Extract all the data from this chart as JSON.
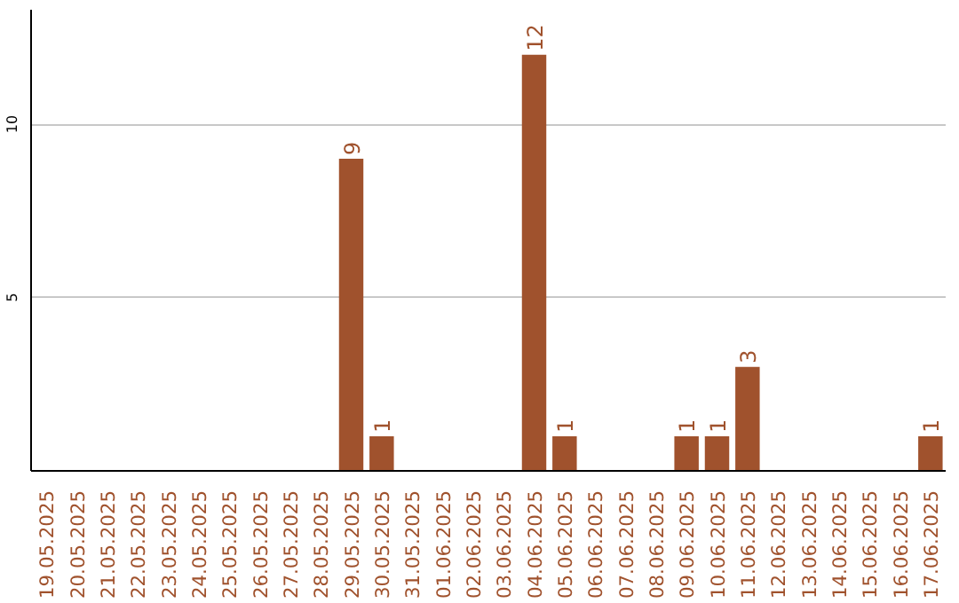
{
  "chart_data": {
    "type": "bar",
    "categories": [
      "19.05.2025",
      "20.05.2025",
      "21.05.2025",
      "22.05.2025",
      "23.05.2025",
      "24.05.2025",
      "25.05.2025",
      "26.05.2025",
      "27.05.2025",
      "28.05.2025",
      "29.05.2025",
      "30.05.2025",
      "31.05.2025",
      "01.06.2025",
      "02.06.2025",
      "03.06.2025",
      "04.06.2025",
      "05.06.2025",
      "06.06.2025",
      "07.06.2025",
      "08.06.2025",
      "09.06.2025",
      "10.06.2025",
      "11.06.2025",
      "12.06.2025",
      "13.06.2025",
      "14.06.2025",
      "15.06.2025",
      "16.06.2025",
      "17.06.2025"
    ],
    "values": [
      0,
      0,
      0,
      0,
      0,
      0,
      0,
      0,
      0,
      0,
      9,
      1,
      0,
      0,
      0,
      0,
      12,
      1,
      0,
      0,
      0,
      1,
      1,
      3,
      0,
      0,
      0,
      0,
      0,
      1
    ],
    "value_labels": [
      null,
      null,
      null,
      null,
      null,
      null,
      null,
      null,
      null,
      null,
      "9",
      "1",
      null,
      null,
      null,
      null,
      "12",
      "1",
      null,
      null,
      null,
      "1",
      "1",
      "3",
      null,
      null,
      null,
      null,
      null,
      "1"
    ],
    "color": "#a0522d",
    "ylim": [
      0,
      13.3
    ],
    "yticks": [
      5,
      10
    ],
    "grid": "y"
  }
}
